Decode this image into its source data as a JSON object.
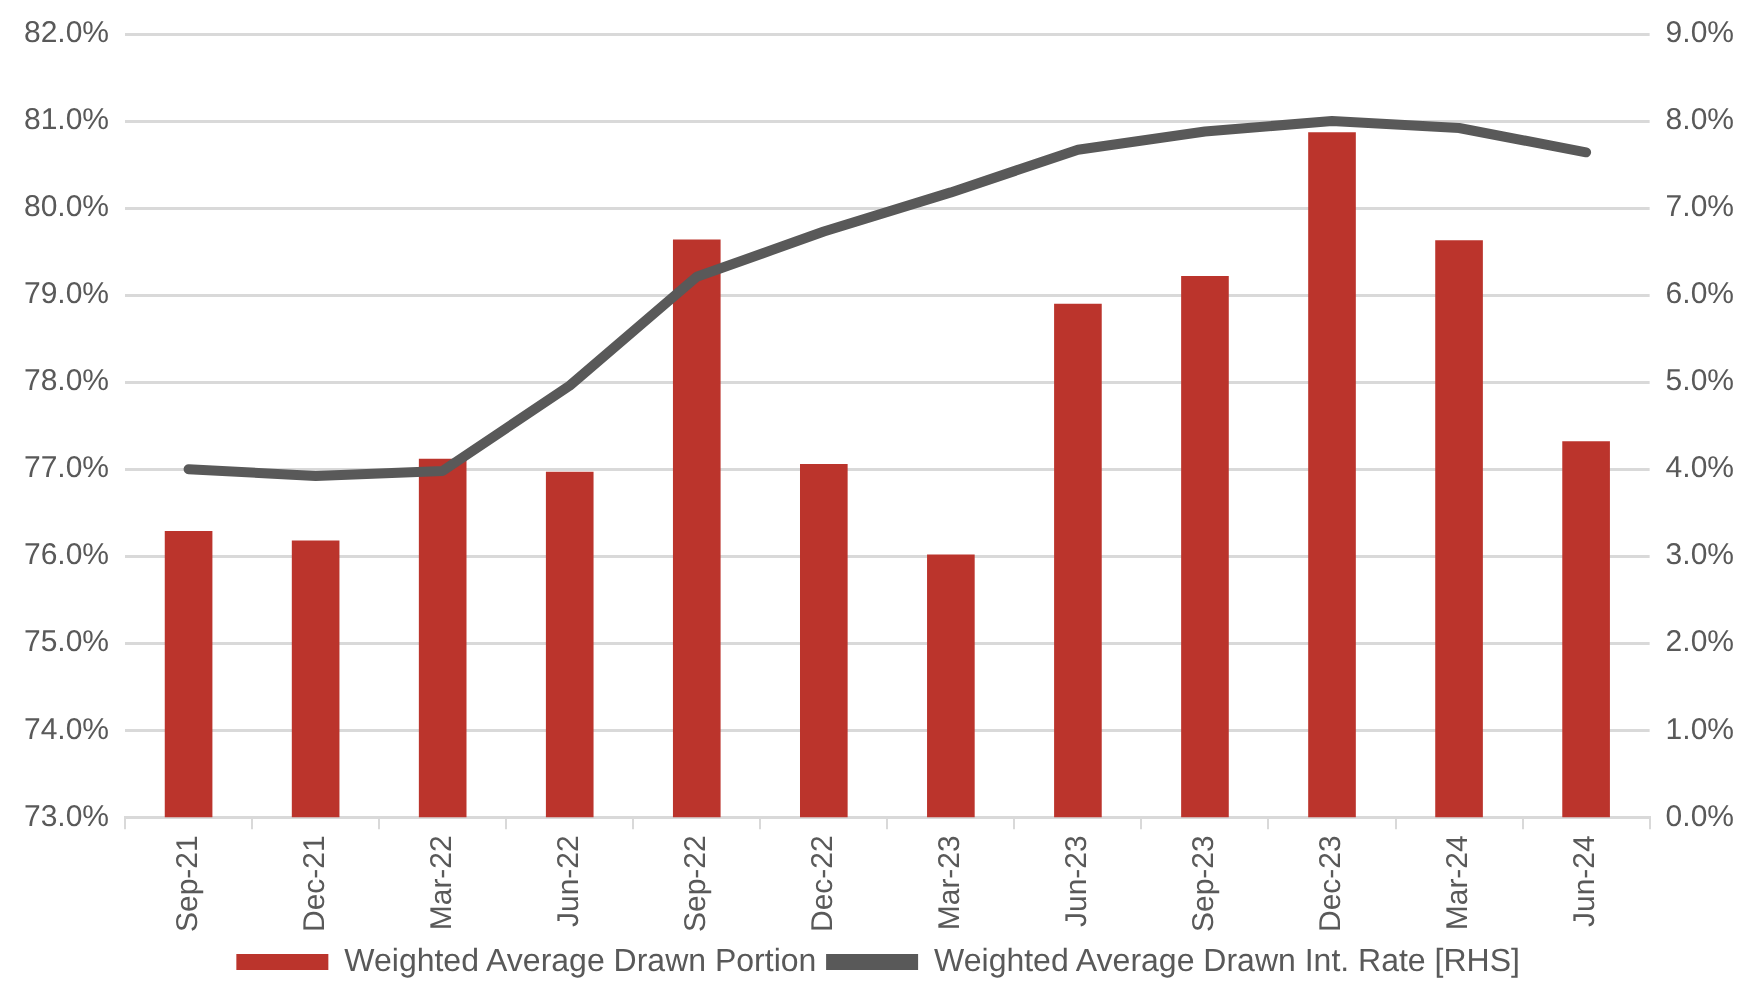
{
  "chart_data": {
    "type": "bar",
    "categories": [
      "Sep-21",
      "Dec-21",
      "Mar-22",
      "Jun-22",
      "Sep-22",
      "Dec-22",
      "Mar-23",
      "Jun-23",
      "Sep-23",
      "Dec-23",
      "Mar-24",
      "Jun-24"
    ],
    "series": [
      {
        "name": "Weighted Average Drawn Portion",
        "color": "#bb342c",
        "values": [
          76.29,
          76.18,
          77.12,
          76.97,
          79.64,
          77.06,
          76.02,
          78.9,
          79.22,
          80.87,
          79.63,
          77.32
        ]
      },
      {
        "name": "Weighted Average Drawn Int. Rate [RHS]",
        "type": "line",
        "axis": "y2",
        "color": "#595959",
        "values": [
          4.0,
          3.92,
          3.98,
          4.96,
          6.21,
          6.73,
          7.18,
          7.67,
          7.88,
          8.0,
          7.92,
          7.64
        ]
      }
    ],
    "ylim": [
      73,
      82
    ],
    "yticks": [
      {
        "value": 73,
        "label": "73.0%"
      },
      {
        "value": 74,
        "label": "74.0%"
      },
      {
        "value": 75,
        "label": "75.0%"
      },
      {
        "value": 76,
        "label": "76.0%"
      },
      {
        "value": 77,
        "label": "77.0%"
      },
      {
        "value": 78,
        "label": "78.0%"
      },
      {
        "value": 79,
        "label": "79.0%"
      },
      {
        "value": 80,
        "label": "80.0%"
      },
      {
        "value": 81,
        "label": "81.0%"
      },
      {
        "value": 82,
        "label": "82.0%"
      }
    ],
    "y2lim": [
      0,
      9
    ],
    "y2ticks": [
      {
        "value": 0,
        "label": "0.0%"
      },
      {
        "value": 1,
        "label": "1.0%"
      },
      {
        "value": 2,
        "label": "2.0%"
      },
      {
        "value": 3,
        "label": "3.0%"
      },
      {
        "value": 4,
        "label": "4.0%"
      },
      {
        "value": 5,
        "label": "5.0%"
      },
      {
        "value": 6,
        "label": "6.0%"
      },
      {
        "value": 7,
        "label": "7.0%"
      },
      {
        "value": 8,
        "label": "8.0%"
      },
      {
        "value": 9,
        "label": "9.0%"
      }
    ],
    "grid": "y",
    "legend": "bottom",
    "marker": "none"
  }
}
